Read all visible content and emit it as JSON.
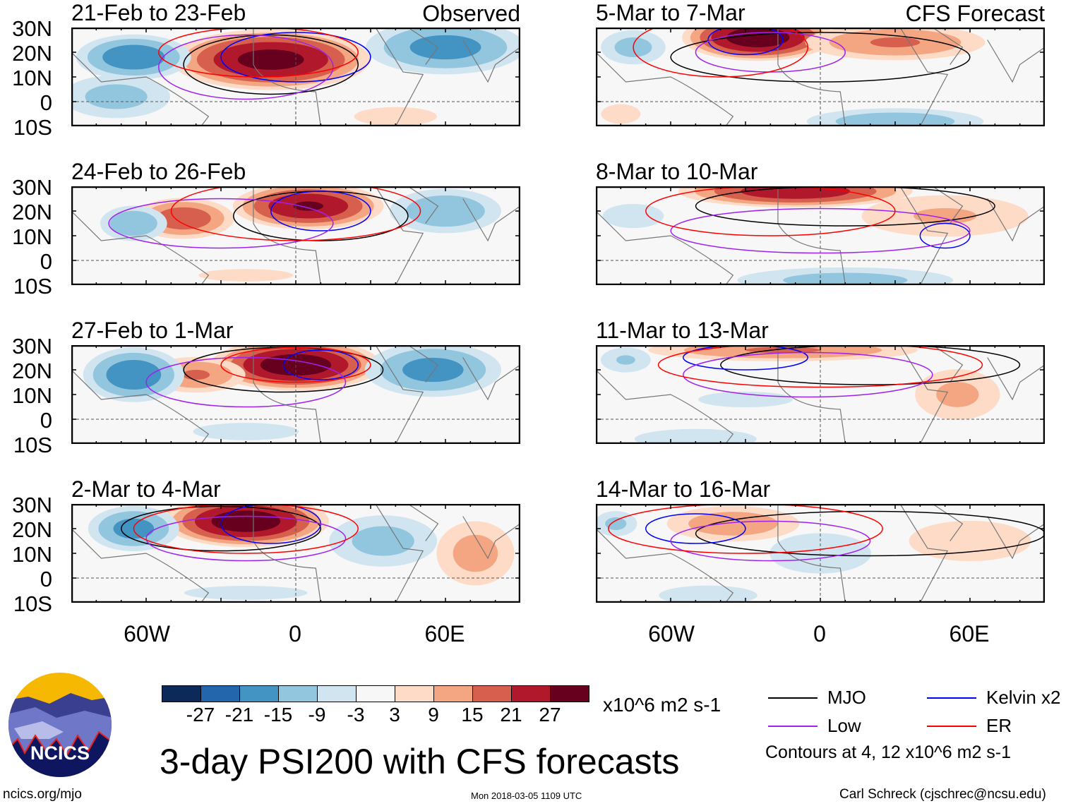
{
  "panels": {
    "left_label": "Observed",
    "right_label": "CFS Forecast",
    "left": [
      {
        "title": "21-Feb to 23-Feb"
      },
      {
        "title": "24-Feb to 26-Feb"
      },
      {
        "title": "27-Feb to 1-Mar"
      },
      {
        "title": "2-Mar to 4-Mar"
      }
    ],
    "right": [
      {
        "title": "5-Mar to 7-Mar"
      },
      {
        "title": "8-Mar to 10-Mar"
      },
      {
        "title": "11-Mar to 13-Mar"
      },
      {
        "title": "14-Mar to 16-Mar"
      }
    ]
  },
  "axes": {
    "lat_labels": [
      "30N",
      "20N",
      "10N",
      "0",
      "10S"
    ],
    "lon_labels": [
      "60W",
      "0",
      "60E"
    ],
    "lon_range": [
      -90,
      90
    ],
    "lat_range": [
      -10,
      30
    ]
  },
  "colorbar": {
    "colors": [
      "#0b2a5a",
      "#2466ac",
      "#4393c3",
      "#92c5de",
      "#d1e5f0",
      "#f7f7f7",
      "#fddbc7",
      "#f4a582",
      "#d6604d",
      "#b2182b",
      "#67001f"
    ],
    "labels": [
      "-27",
      "-21",
      "-15",
      "-9",
      "-3",
      "3",
      "9",
      "15",
      "21",
      "27"
    ],
    "units": "x10^6 m2 s-1"
  },
  "legend": {
    "items": [
      {
        "label": "MJO",
        "color": "#000000"
      },
      {
        "label": "Kelvin x2",
        "color": "#0000ff"
      },
      {
        "label": "Low",
        "color": "#a020f0"
      },
      {
        "label": "ER",
        "color": "#ff0000"
      }
    ],
    "note": "Contours at 4, 12 x10^6 m2 s-1"
  },
  "title": "3-day PSI200 with CFS forecasts",
  "logo_text": "NCICS",
  "footer": {
    "url": "ncics.org/mjo",
    "timestamp": "Mon 2018-03-05 1109 UTC",
    "author": "Carl Schreck (cjschrec@ncsu.edu)"
  }
}
